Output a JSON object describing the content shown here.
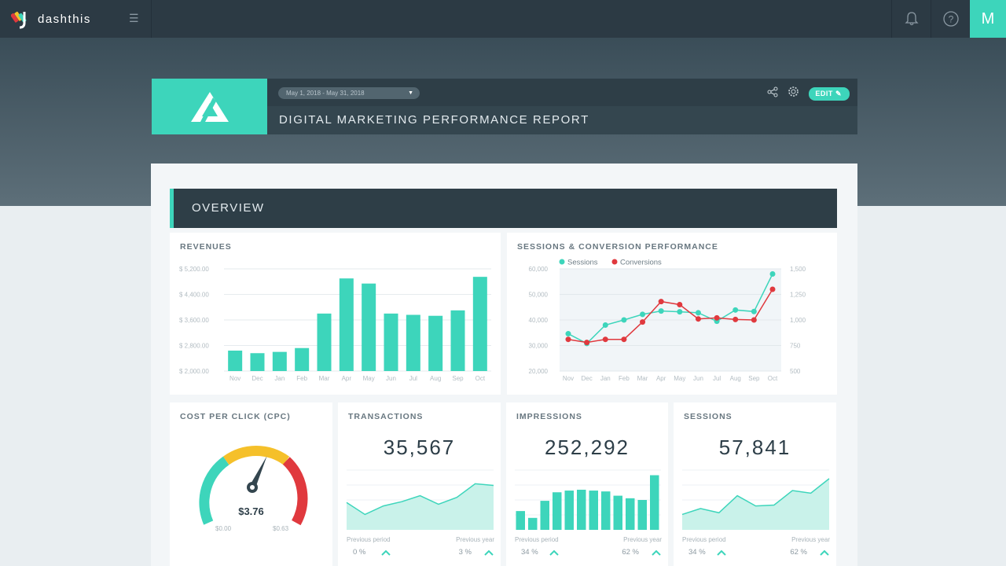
{
  "app": {
    "brand": "dashthis",
    "avatar_letter": "M"
  },
  "colors": {
    "accent": "#3dd5bb",
    "dark": "#2e3e47",
    "conversions": "#e0393e",
    "gauge_yellow": "#f5c02a"
  },
  "report": {
    "date_range": "May 1, 2018 - May 31, 2018",
    "title": "DIGITAL MARKETING PERFORMANCE REPORT",
    "edit_label": "EDIT"
  },
  "section": {
    "title": "OVERVIEW"
  },
  "revenues": {
    "title": "REVENUES",
    "chart_data": {
      "type": "bar",
      "categories": [
        "Nov",
        "Dec",
        "Jan",
        "Feb",
        "Mar",
        "Apr",
        "May",
        "Jun",
        "Jul",
        "Aug",
        "Sep",
        "Oct"
      ],
      "values": [
        2640,
        2560,
        2600,
        2720,
        3800,
        4900,
        4740,
        3800,
        3760,
        3730,
        3900,
        4950
      ],
      "ylim": [
        2000,
        5200
      ],
      "yticks": [
        "$ 5,200.00",
        "$ 4,400.00",
        "$ 3,600.00",
        "$ 2,800.00",
        "$ 2,000.00"
      ]
    }
  },
  "sessions_conv": {
    "title": "SESSIONS & CONVERSION PERFORMANCE",
    "chart_data": {
      "type": "line",
      "categories": [
        "Nov",
        "Dec",
        "Jan",
        "Feb",
        "Mar",
        "Apr",
        "May",
        "Jun",
        "Jul",
        "Aug",
        "Sep",
        "Oct"
      ],
      "series": [
        {
          "name": "Sessions",
          "axis": "left",
          "values": [
            34600,
            30800,
            38000,
            40000,
            42200,
            43500,
            43200,
            42800,
            39500,
            43900,
            43300,
            58000
          ]
        },
        {
          "name": "Conversions",
          "axis": "right",
          "values": [
            810,
            780,
            810,
            810,
            980,
            1180,
            1150,
            1010,
            1020,
            1005,
            1000,
            1300
          ]
        }
      ],
      "ylim_left": [
        20000,
        60000
      ],
      "ylim_right": [
        500,
        1500
      ],
      "yticks_left": [
        "60,000",
        "50,000",
        "40,000",
        "30,000",
        "20,000"
      ],
      "yticks_right": [
        "1,500",
        "1,250",
        "1,000",
        "750",
        "500"
      ]
    }
  },
  "cpc": {
    "title": "COST PER CLICK (CPC)",
    "value": "$3.76",
    "min": "$0.00",
    "max": "$0.63",
    "level": 0.6
  },
  "kpis": [
    {
      "title": "TRANSACTIONS",
      "value": "35,567",
      "prev_label": "Previous period",
      "prev_value": "0 %",
      "year_label": "Previous year",
      "year_value": "3 %",
      "chart": "area",
      "values": [
        32,
        18,
        28,
        33,
        40,
        30,
        38,
        54,
        52
      ]
    },
    {
      "title": "IMPRESSIONS",
      "value": "252,292",
      "prev_label": "Previous period",
      "prev_value": "34 %",
      "year_label": "Previous year",
      "year_value": "62 %",
      "chart": "bar",
      "values": [
        22,
        14,
        34,
        44,
        46,
        47,
        46,
        45,
        40,
        37,
        35,
        64
      ]
    },
    {
      "title": "SESSIONS",
      "value": "57,841",
      "prev_label": "Previous period",
      "prev_value": "34 %",
      "year_label": "Previous year",
      "year_value": "62 %",
      "chart": "area",
      "values": [
        18,
        25,
        20,
        40,
        28,
        29,
        46,
        43,
        60
      ]
    }
  ]
}
